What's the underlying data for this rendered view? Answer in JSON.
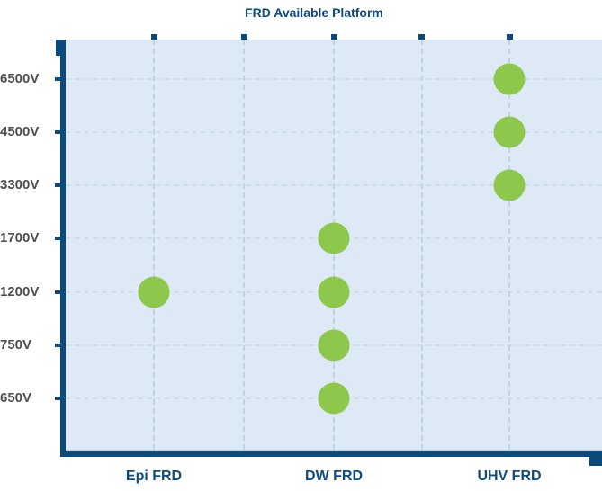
{
  "chart_data": {
    "type": "scatter",
    "title": "FRD Available Platform",
    "categories": [
      "Epi FRD",
      "DW FRD",
      "UHV FRD"
    ],
    "y_tick_labels": [
      "6500V",
      "4500V",
      "3300V",
      "1700V",
      "1200V",
      "750V",
      "650V"
    ],
    "points": [
      {
        "category": "Epi FRD",
        "voltage": "1200V"
      },
      {
        "category": "DW FRD",
        "voltage": "1700V"
      },
      {
        "category": "DW FRD",
        "voltage": "1200V"
      },
      {
        "category": "DW FRD",
        "voltage": "750V"
      },
      {
        "category": "DW FRD",
        "voltage": "650V"
      },
      {
        "category": "UHV FRD",
        "voltage": "6500V"
      },
      {
        "category": "UHV FRD",
        "voltage": "4500V"
      },
      {
        "category": "UHV FRD",
        "voltage": "3300V"
      }
    ],
    "legend": false,
    "grid": {
      "horizontal": "dashed",
      "vertical": "dashed"
    },
    "colors": {
      "marker": "#8dc74c",
      "axis": "#0c4a7d",
      "axis_highlight": "#b2cbdf",
      "title_text": "#0e4b80",
      "category_label_text": "#0e4b80",
      "y_label_text": "#4f4f4f",
      "plot_background": "#dde9f4",
      "h_gridline": "#ccddeb",
      "v_gridline": "#bfd3e6"
    }
  }
}
